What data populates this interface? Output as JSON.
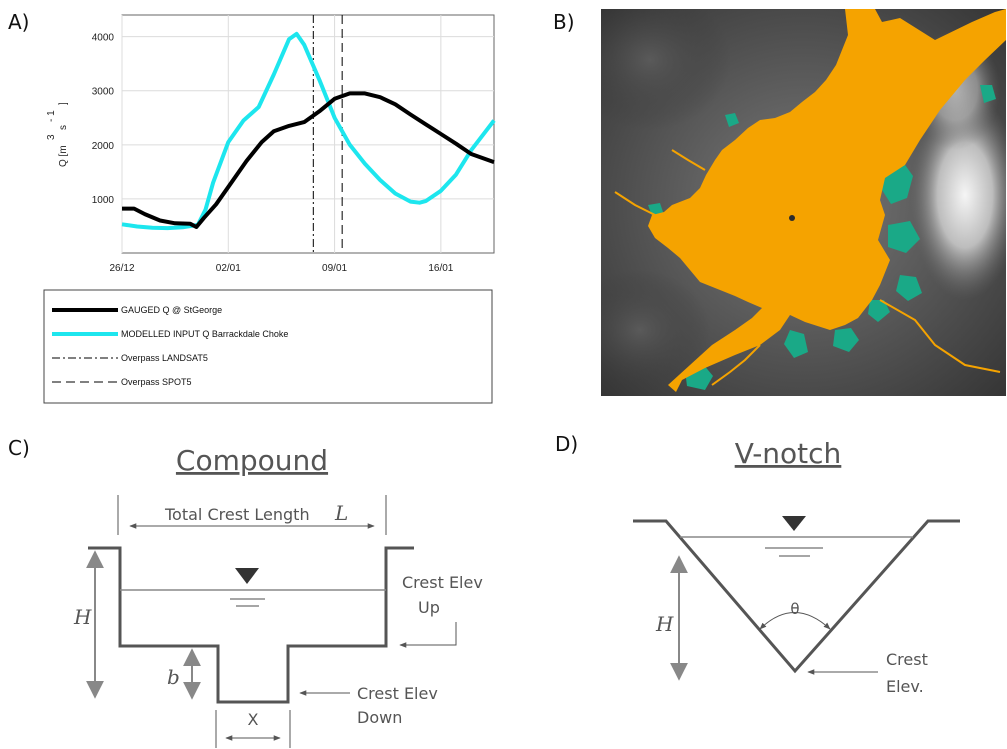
{
  "panels": {
    "a": "A)",
    "b": "B)",
    "c": "C)",
    "d": "D)"
  },
  "chart_data": {
    "type": "line",
    "ylabel": "Q [m 3 s -1 ]",
    "ylabel_parts": {
      "main": "Q [m",
      "sup1": "3",
      "unit": "s",
      "sup2": "- 1",
      "close": "]"
    },
    "xlabel": "",
    "x_ticks": [
      {
        "label": "26/12",
        "day": 0
      },
      {
        "label": "02/01",
        "day": 7
      },
      {
        "label": "09/01",
        "day": 14
      },
      {
        "label": "16/01",
        "day": 21
      }
    ],
    "y_ticks": [
      1000,
      2000,
      3000,
      4000
    ],
    "xlim_days": [
      0,
      24.5
    ],
    "ylim": [
      0,
      4400
    ],
    "grid": true,
    "legend_position": "below",
    "series": [
      {
        "name": "GAUGED Q @ StGeorge",
        "color": "#000000",
        "style": "solid",
        "points": [
          [
            0,
            820
          ],
          [
            0.8,
            820
          ],
          [
            1.5,
            720
          ],
          [
            2.5,
            600
          ],
          [
            3.5,
            550
          ],
          [
            4.5,
            540
          ],
          [
            4.9,
            480
          ],
          [
            5.4,
            650
          ],
          [
            6.2,
            900
          ],
          [
            7.2,
            1300
          ],
          [
            8.2,
            1700
          ],
          [
            9.2,
            2050
          ],
          [
            10,
            2250
          ],
          [
            11,
            2350
          ],
          [
            12,
            2420
          ],
          [
            13,
            2620
          ],
          [
            14,
            2850
          ],
          [
            15,
            2950
          ],
          [
            16,
            2950
          ],
          [
            17,
            2880
          ],
          [
            18,
            2750
          ],
          [
            19,
            2560
          ],
          [
            20,
            2380
          ],
          [
            21,
            2200
          ],
          [
            22,
            2020
          ],
          [
            23,
            1830
          ],
          [
            24.5,
            1680
          ]
        ]
      },
      {
        "name": "MODELLED INPUT Q Barrackdale Choke",
        "color": "#1de6ee",
        "style": "solid",
        "points": [
          [
            0,
            530
          ],
          [
            1,
            490
          ],
          [
            2,
            465
          ],
          [
            3,
            460
          ],
          [
            4,
            475
          ],
          [
            5,
            520
          ],
          [
            5.5,
            800
          ],
          [
            6,
            1300
          ],
          [
            7,
            2050
          ],
          [
            8,
            2450
          ],
          [
            9,
            2700
          ],
          [
            10,
            3300
          ],
          [
            11,
            3950
          ],
          [
            11.5,
            4050
          ],
          [
            12,
            3850
          ],
          [
            13,
            3200
          ],
          [
            14,
            2500
          ],
          [
            15,
            2000
          ],
          [
            16,
            1650
          ],
          [
            17,
            1350
          ],
          [
            18,
            1100
          ],
          [
            19,
            950
          ],
          [
            19.6,
            930
          ],
          [
            20,
            960
          ],
          [
            21,
            1150
          ],
          [
            22,
            1450
          ],
          [
            23,
            1900
          ],
          [
            24.5,
            2450
          ]
        ]
      },
      {
        "name": "Overpass LANDSAT5",
        "color": "#000000",
        "style": "dashdot",
        "x_day": 12.6
      },
      {
        "name": "Overpass SPOT5",
        "color": "#000000",
        "style": "dashed",
        "x_day": 14.5
      }
    ]
  },
  "compound": {
    "title": "Compound",
    "length_label": "Total Crest Length",
    "length_symbol": "L",
    "h_symbol": "H",
    "b_symbol": "b",
    "x_symbol": "X",
    "crest_up_line1": "Crest Elev",
    "crest_up_line2": "Up",
    "crest_down_line1": "Crest Elev",
    "crest_down_line2": "Down"
  },
  "vnotch": {
    "title": "V-notch",
    "h_symbol": "H",
    "theta_symbol": "θ",
    "crest_line1": "Crest",
    "crest_line2": "Elev."
  },
  "colors": {
    "flood": "#f5a300",
    "vegetation": "#1aa987",
    "gauged": "#000000",
    "modelled": "#1de6ee",
    "diagram": "#555555"
  }
}
